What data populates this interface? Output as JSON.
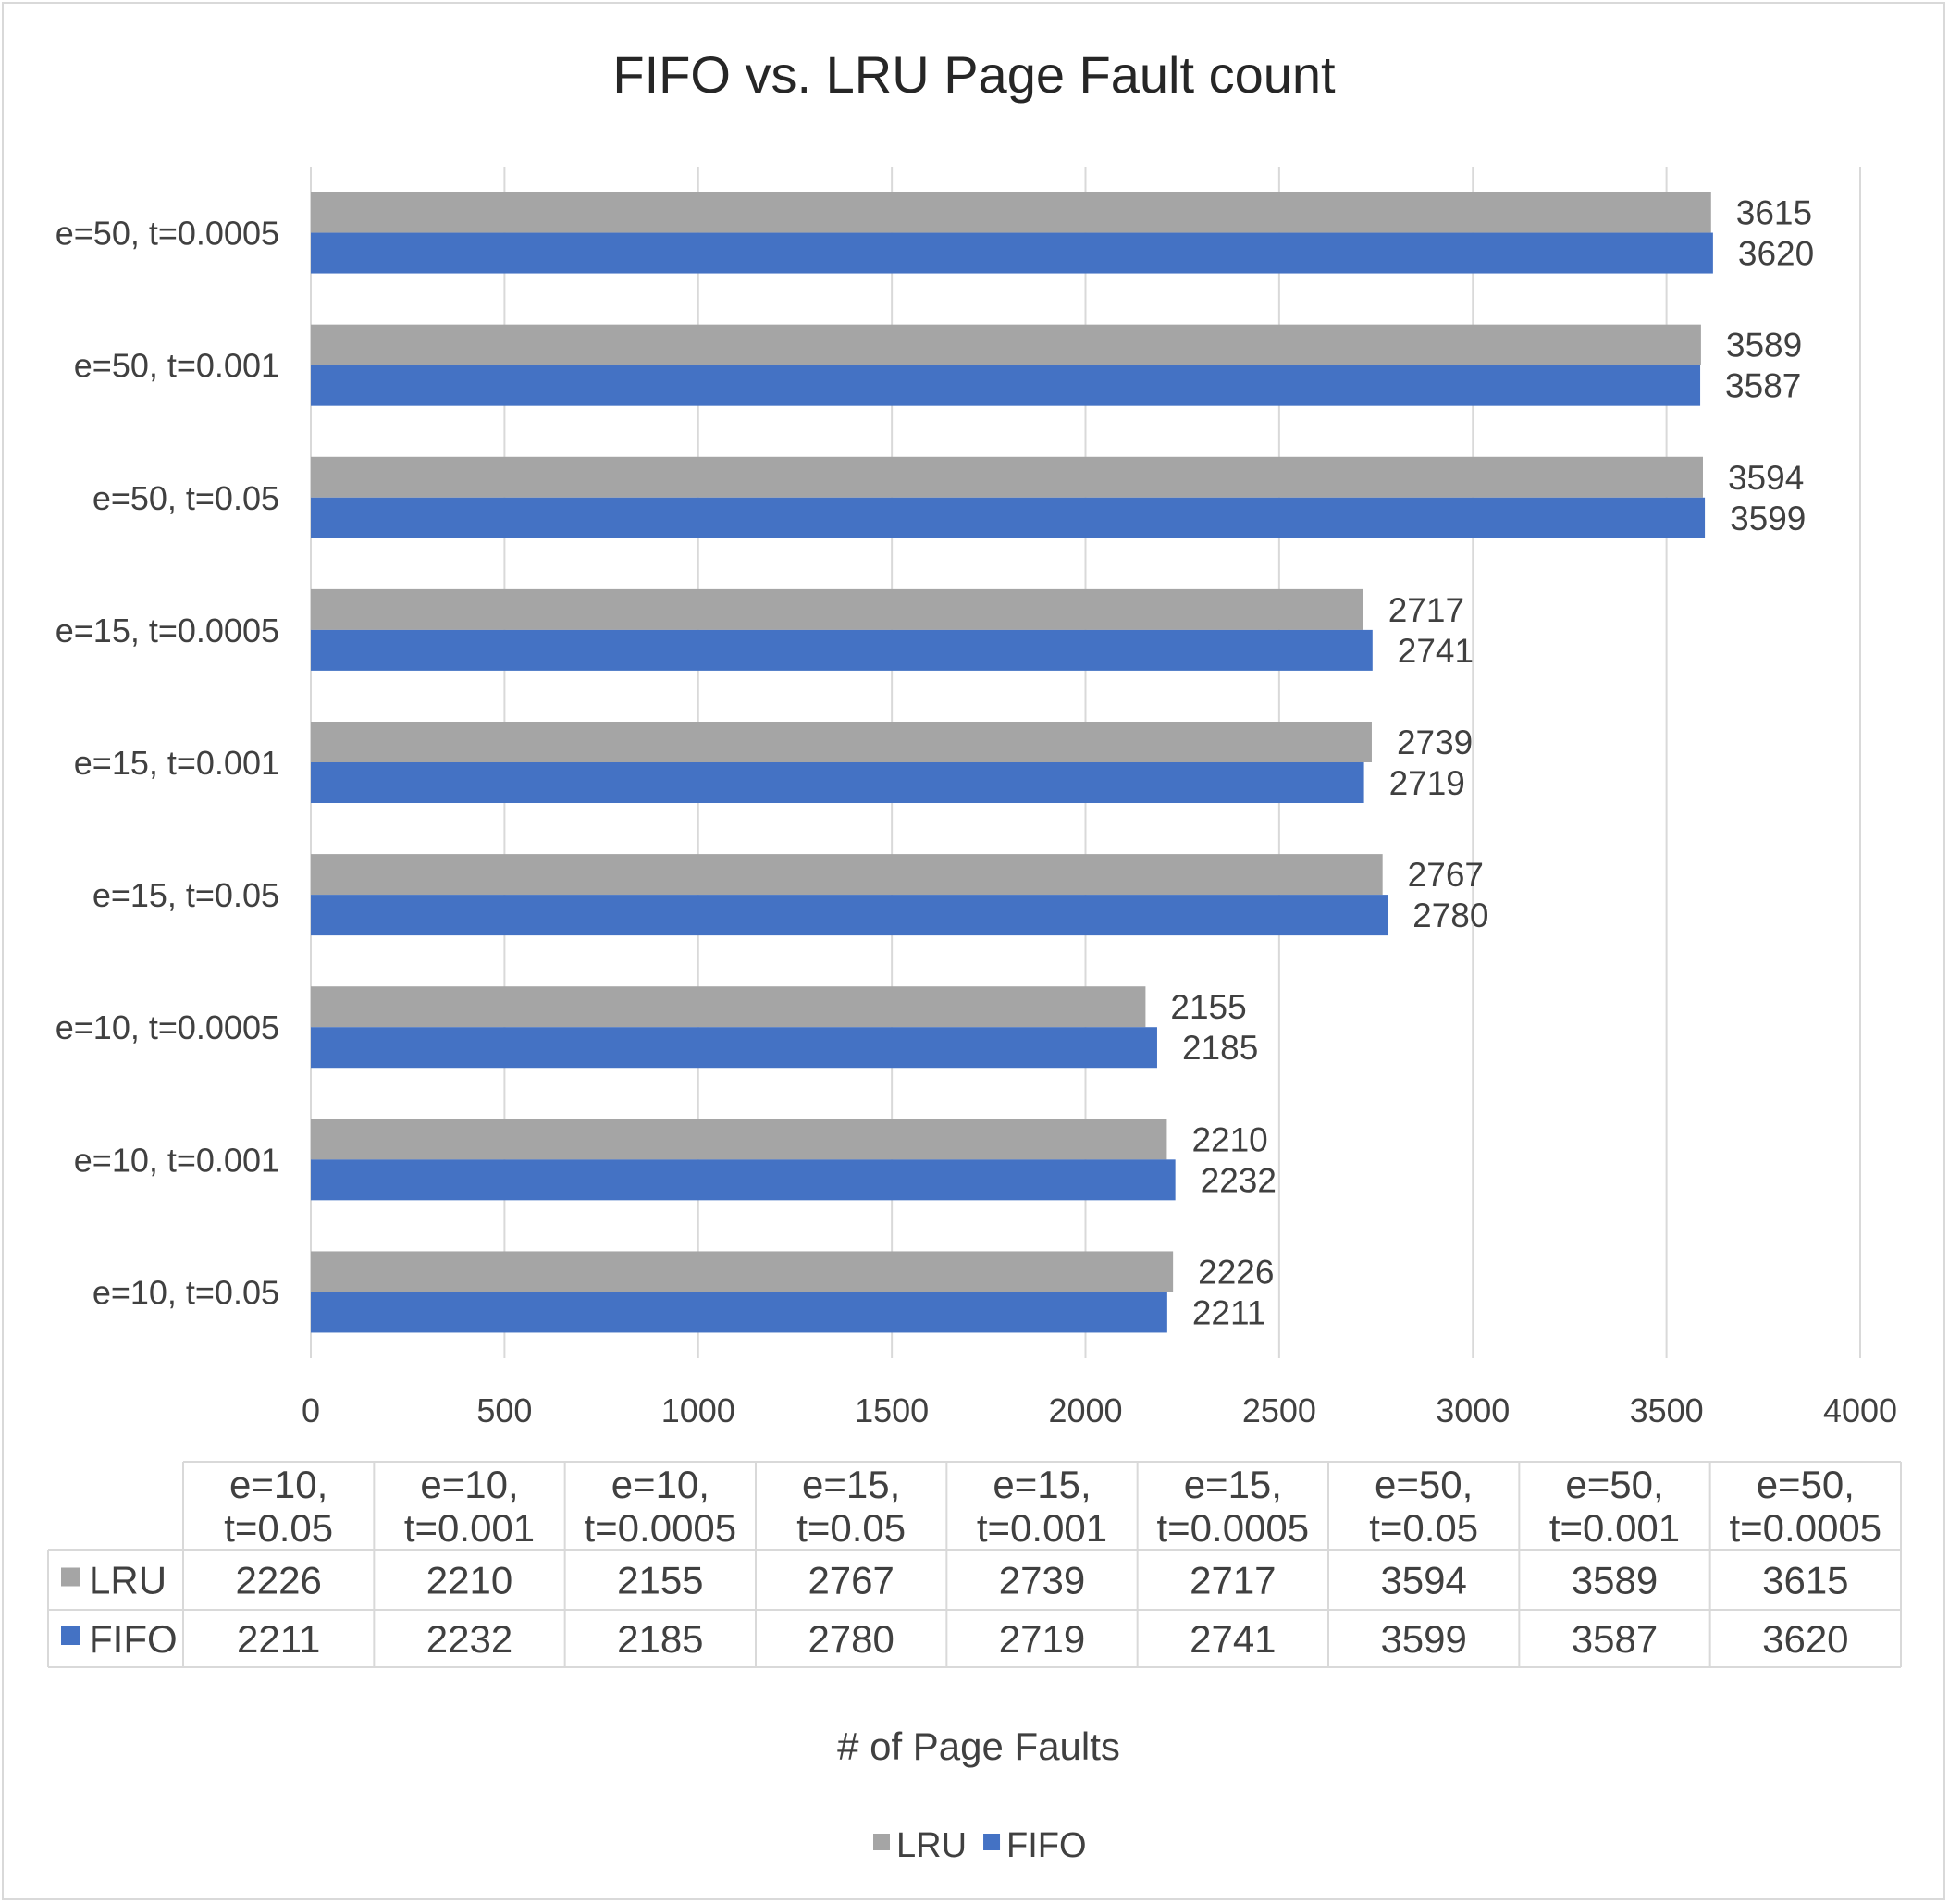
{
  "chart_data": {
    "type": "bar",
    "orientation": "horizontal",
    "title": "FIFO vs. LRU Page Fault count",
    "xlabel": "# of Page Faults",
    "ylabel": "",
    "xlim": [
      0,
      4000
    ],
    "xticks": [
      0,
      500,
      1000,
      1500,
      2000,
      2500,
      3000,
      3500,
      4000
    ],
    "grid": true,
    "legend_position": "bottom",
    "data_table": true,
    "categories": [
      "e=10, t=0.05",
      "e=10, t=0.001",
      "e=10, t=0.0005",
      "e=15, t=0.05",
      "e=15, t=0.001",
      "e=15, t=0.0005",
      "e=50, t=0.05",
      "e=50, t=0.001",
      "e=50, t=0.0005"
    ],
    "table_headers": [
      [
        "e=10,",
        "t=0.05"
      ],
      [
        "e=10,",
        "t=0.001"
      ],
      [
        "e=10,",
        "t=0.0005"
      ],
      [
        "e=15,",
        "t=0.05"
      ],
      [
        "e=15,",
        "t=0.001"
      ],
      [
        "e=15,",
        "t=0.0005"
      ],
      [
        "e=50,",
        "t=0.05"
      ],
      [
        "e=50,",
        "t=0.001"
      ],
      [
        "e=50,",
        "t=0.0005"
      ]
    ],
    "series": [
      {
        "name": "LRU",
        "color": "#a5a5a5",
        "values": [
          2226,
          2210,
          2155,
          2767,
          2739,
          2717,
          3594,
          3589,
          3615
        ]
      },
      {
        "name": "FIFO",
        "color": "#4472c4",
        "values": [
          2211,
          2232,
          2185,
          2780,
          2719,
          2741,
          3599,
          3587,
          3620
        ]
      }
    ]
  },
  "colors": {
    "grid": "#d9d9d9",
    "text": "#404040",
    "title": "#262626"
  }
}
